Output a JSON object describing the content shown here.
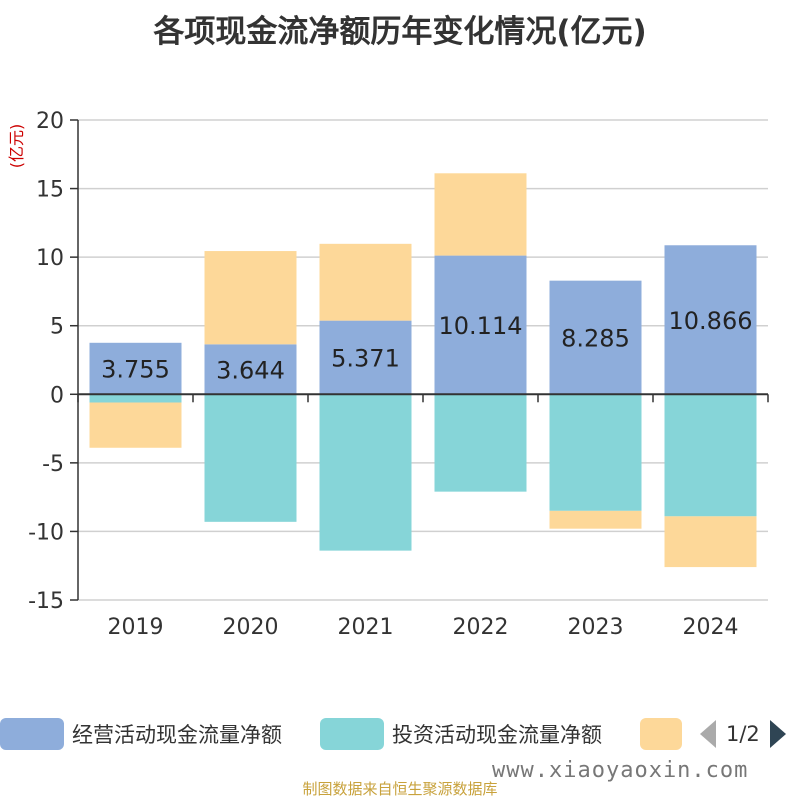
{
  "title": "各项现金流净额历年变化情况(亿元)",
  "source": "制图数据来自恒生聚源数据库",
  "watermark": "www.xiaoyaoxin.com",
  "legend": {
    "items": [
      {
        "label": "经营活动现金流量净额",
        "color": "#8eaddb"
      },
      {
        "label": "投资活动现金流量净额",
        "color": "#86d5d8"
      },
      {
        "label": "",
        "color": "#fdd899"
      }
    ],
    "page": "1/2"
  },
  "chart_data": {
    "type": "bar",
    "stacked": true,
    "ylabel": "(亿元)",
    "ylim": [
      -15,
      20
    ],
    "yticks": [
      20,
      15,
      10,
      5,
      0,
      -5,
      -10,
      -15
    ],
    "grid": true,
    "legend_position": "bottom",
    "categories": [
      "2019",
      "2020",
      "2021",
      "2022",
      "2023",
      "2024"
    ],
    "series": [
      {
        "name": "经营活动现金流量净额",
        "color": "#8eaddb",
        "values": [
          3.755,
          3.644,
          5.371,
          10.114,
          8.285,
          10.866
        ],
        "labeled": true
      },
      {
        "name": "投资活动现金流量净额",
        "color": "#86d5d8",
        "values": [
          -0.6,
          -9.3,
          -11.4,
          -7.1,
          -8.5,
          -8.9
        ],
        "labeled": false
      },
      {
        "color": "#fdd899",
        "values": [
          -3.3,
          6.8,
          5.6,
          6.0,
          -1.3,
          -3.7
        ],
        "labeled": false
      }
    ]
  }
}
